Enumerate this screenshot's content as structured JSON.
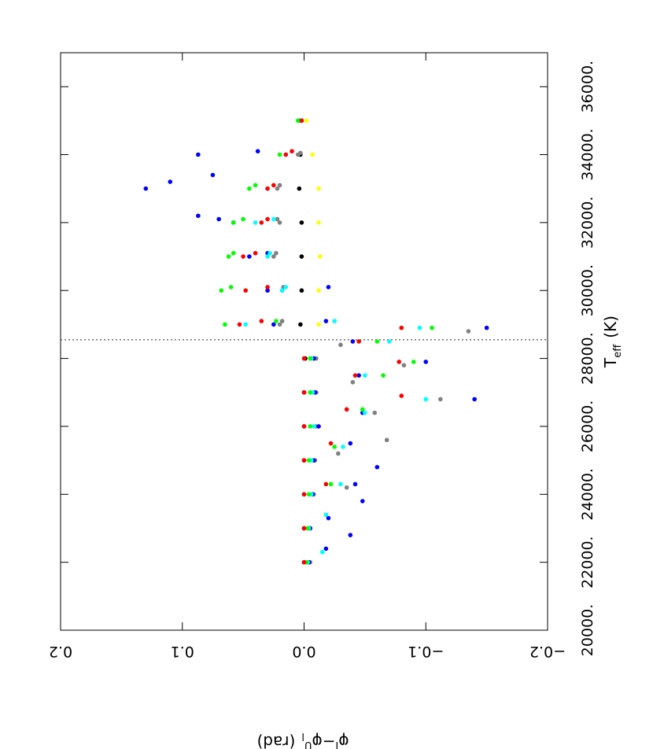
{
  "chart_data": {
    "type": "scatter",
    "orientation": "rotated 90 degrees clockwise",
    "x": {
      "label_main": "T",
      "label_sub": "eff",
      "label_unit": "(K)",
      "range": [
        20000,
        37000
      ],
      "ticks": [
        "20000.",
        "22000.",
        "24000.",
        "26000.",
        "28000.",
        "30000.",
        "32000.",
        "34000.",
        "36000."
      ],
      "tick_values": [
        20000,
        22000,
        24000,
        26000,
        28000,
        30000,
        32000,
        34000,
        36000
      ]
    },
    "y": {
      "label_main": "φ",
      "label_sup1": "I",
      "label_mid": "−φ",
      "label_sup2": "U",
      "label_sub": "l",
      "label_unit": "(rad)",
      "range": [
        0.2,
        -0.2
      ],
      "ticks": [
        "0.2",
        "0.1",
        "0.0",
        "−0.1",
        "−0.2"
      ],
      "tick_values": [
        0.2,
        0.1,
        0.0,
        -0.1,
        -0.2
      ]
    },
    "divider": {
      "x": 28550,
      "style": "dotted"
    },
    "grid": false,
    "legend": "none",
    "series": [
      {
        "color": "#000000",
        "points": [
          [
            22000,
            0.0
          ],
          [
            23000,
            0.0
          ],
          [
            24000,
            0.0
          ],
          [
            25000,
            0.0
          ],
          [
            26000,
            0.0
          ],
          [
            27000,
            0.0
          ],
          [
            28000,
            -0.001
          ],
          [
            29000,
            0.003
          ],
          [
            30000,
            0.002
          ],
          [
            31000,
            0.002
          ],
          [
            32000,
            0.002
          ],
          [
            33000,
            0.004
          ],
          [
            34000,
            0.003
          ],
          [
            35000,
            0.002
          ]
        ]
      },
      {
        "color": "#808080",
        "points": [
          [
            22000,
            -0.005
          ],
          [
            23000,
            -0.005
          ],
          [
            24000,
            -0.008
          ],
          [
            24200,
            -0.035
          ],
          [
            25000,
            -0.009
          ],
          [
            25200,
            -0.028
          ],
          [
            25600,
            -0.068
          ],
          [
            26000,
            -0.01
          ],
          [
            26400,
            -0.058
          ],
          [
            26800,
            -0.112
          ],
          [
            27000,
            -0.01
          ],
          [
            27300,
            -0.04
          ],
          [
            27800,
            -0.082
          ],
          [
            28000,
            -0.01
          ],
          [
            28400,
            -0.03
          ],
          [
            28800,
            -0.135
          ],
          [
            29000,
            0.02
          ],
          [
            29100,
            0.018
          ],
          [
            30000,
            0.018
          ],
          [
            30100,
            0.017
          ],
          [
            31000,
            0.025
          ],
          [
            31100,
            0.023
          ],
          [
            32000,
            0.02
          ],
          [
            32100,
            0.022
          ],
          [
            33000,
            0.022
          ],
          [
            33100,
            0.02
          ],
          [
            34000,
            0.005
          ],
          [
            34050,
            0.003
          ]
        ]
      },
      {
        "color": "#0000ff",
        "points": [
          [
            22000,
            -0.004
          ],
          [
            22400,
            -0.018
          ],
          [
            22800,
            -0.038
          ],
          [
            23000,
            -0.005
          ],
          [
            23300,
            -0.02
          ],
          [
            23800,
            -0.048
          ],
          [
            24000,
            -0.007
          ],
          [
            24300,
            -0.042
          ],
          [
            24800,
            -0.06
          ],
          [
            25000,
            -0.008
          ],
          [
            25500,
            -0.038
          ],
          [
            26000,
            -0.012
          ],
          [
            26400,
            -0.048
          ],
          [
            26800,
            -0.14
          ],
          [
            27000,
            -0.009
          ],
          [
            27500,
            -0.045
          ],
          [
            27900,
            -0.1
          ],
          [
            28000,
            -0.008
          ],
          [
            28500,
            -0.04
          ],
          [
            28900,
            -0.15
          ],
          [
            29000,
            0.025
          ],
          [
            29100,
            -0.018
          ],
          [
            30000,
            0.03
          ],
          [
            30100,
            -0.02
          ],
          [
            31000,
            0.045
          ],
          [
            31100,
            0.03
          ],
          [
            32000,
            0.058
          ],
          [
            32100,
            0.07
          ],
          [
            32200,
            0.087
          ],
          [
            33000,
            0.13
          ],
          [
            33200,
            0.11
          ],
          [
            33400,
            0.075
          ],
          [
            34000,
            0.087
          ],
          [
            34100,
            0.038
          ],
          [
            35000,
            0.004
          ]
        ]
      },
      {
        "color": "#00ffff",
        "points": [
          [
            22000,
            -0.003
          ],
          [
            22300,
            -0.015
          ],
          [
            23000,
            -0.004
          ],
          [
            23400,
            -0.018
          ],
          [
            24000,
            -0.006
          ],
          [
            24300,
            -0.03
          ],
          [
            25000,
            -0.006
          ],
          [
            25400,
            -0.032
          ],
          [
            26000,
            -0.008
          ],
          [
            26400,
            -0.05
          ],
          [
            26800,
            -0.1
          ],
          [
            27000,
            -0.007
          ],
          [
            27500,
            -0.05
          ],
          [
            28000,
            -0.006
          ],
          [
            28500,
            -0.07
          ],
          [
            28900,
            -0.095
          ],
          [
            29000,
            0.048
          ],
          [
            29100,
            -0.025
          ],
          [
            30000,
            0.018
          ],
          [
            30100,
            0.015
          ],
          [
            31000,
            0.03
          ],
          [
            31100,
            0.028
          ],
          [
            32000,
            0.04
          ],
          [
            32100,
            0.025
          ],
          [
            33000,
            0.03
          ],
          [
            33100,
            0.025
          ],
          [
            34000,
            0.015
          ],
          [
            35000,
            0.003
          ]
        ]
      },
      {
        "color": "#00ff00",
        "points": [
          [
            22000,
            -0.002
          ],
          [
            23000,
            -0.003
          ],
          [
            24000,
            -0.004
          ],
          [
            24300,
            -0.022
          ],
          [
            25000,
            -0.004
          ],
          [
            25400,
            -0.025
          ],
          [
            26000,
            -0.005
          ],
          [
            26500,
            -0.048
          ],
          [
            27000,
            -0.005
          ],
          [
            27500,
            -0.065
          ],
          [
            27900,
            -0.09
          ],
          [
            28000,
            -0.005
          ],
          [
            28500,
            -0.06
          ],
          [
            28900,
            -0.105
          ],
          [
            29000,
            0.065
          ],
          [
            29100,
            0.023
          ],
          [
            30000,
            0.068
          ],
          [
            30100,
            0.06
          ],
          [
            31000,
            0.062
          ],
          [
            31100,
            0.058
          ],
          [
            32000,
            0.058
          ],
          [
            32100,
            0.05
          ],
          [
            33000,
            0.045
          ],
          [
            33100,
            0.04
          ],
          [
            34000,
            0.02
          ],
          [
            35000,
            0.005
          ]
        ]
      },
      {
        "color": "#ff0000",
        "points": [
          [
            22000,
            0.0
          ],
          [
            23000,
            0.0
          ],
          [
            24000,
            0.0
          ],
          [
            24300,
            -0.018
          ],
          [
            25000,
            0.0
          ],
          [
            25500,
            -0.022
          ],
          [
            26000,
            0.0
          ],
          [
            26500,
            -0.035
          ],
          [
            26900,
            -0.08
          ],
          [
            27000,
            0.0
          ],
          [
            27500,
            -0.042
          ],
          [
            27900,
            -0.078
          ],
          [
            28000,
            0.0
          ],
          [
            28500,
            -0.045
          ],
          [
            28900,
            -0.08
          ],
          [
            29000,
            0.053
          ],
          [
            29100,
            0.035
          ],
          [
            30000,
            0.048
          ],
          [
            30100,
            0.03
          ],
          [
            31000,
            0.05
          ],
          [
            31100,
            0.04
          ],
          [
            32000,
            0.035
          ],
          [
            32100,
            0.03
          ],
          [
            33000,
            0.03
          ],
          [
            33100,
            0.025
          ],
          [
            34000,
            0.015
          ],
          [
            34100,
            0.01
          ],
          [
            35000,
            0.002
          ]
        ]
      },
      {
        "color": "#ffff00",
        "points": [
          [
            29000,
            -0.012
          ],
          [
            30000,
            -0.012
          ],
          [
            31000,
            -0.013
          ],
          [
            32000,
            -0.012
          ],
          [
            33000,
            -0.012
          ],
          [
            34000,
            -0.007
          ],
          [
            35000,
            -0.002
          ]
        ]
      }
    ]
  }
}
